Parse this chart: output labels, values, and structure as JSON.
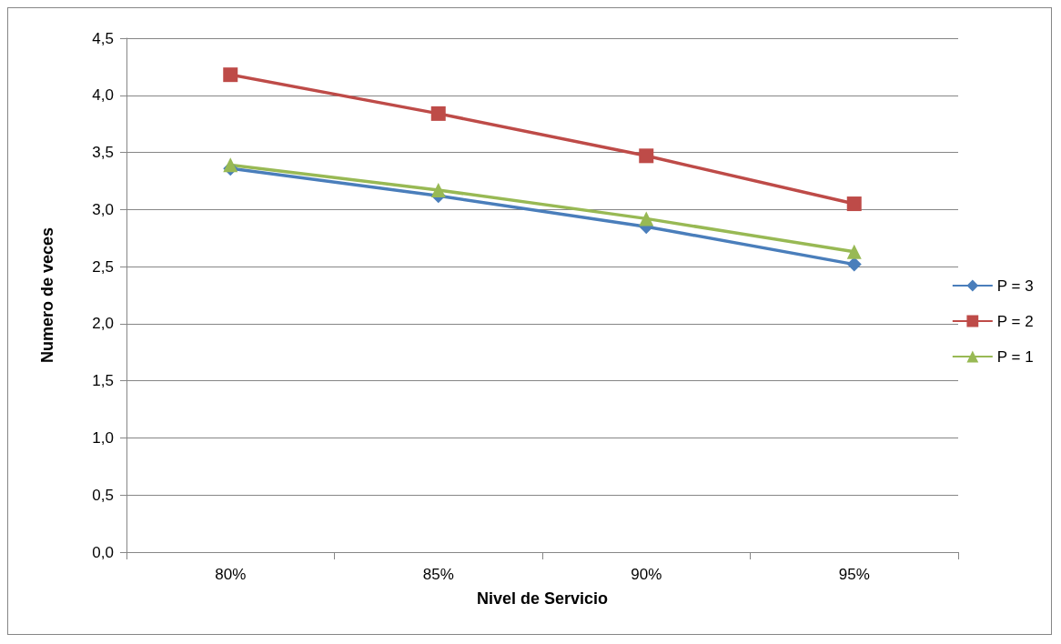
{
  "chart_data": {
    "type": "line",
    "xlabel": "Nivel de Servicio",
    "ylabel": "Numero de veces",
    "categories": [
      "80%",
      "85%",
      "90%",
      "95%"
    ],
    "series": [
      {
        "name": "P = 3",
        "color": "#4a7ebb",
        "marker": "diamond",
        "values": [
          3.36,
          3.12,
          2.85,
          2.52
        ]
      },
      {
        "name": "P = 2",
        "color": "#be4b48",
        "marker": "square",
        "values": [
          4.18,
          3.84,
          3.47,
          3.05
        ]
      },
      {
        "name": "P = 1",
        "color": "#98b954",
        "marker": "triangle",
        "values": [
          3.39,
          3.17,
          2.92,
          2.63
        ]
      }
    ],
    "ylim": [
      0,
      4.5
    ],
    "yticks": [
      {
        "value": 0,
        "label": "0,0"
      },
      {
        "value": 0.5,
        "label": "0,5"
      },
      {
        "value": 1,
        "label": "1,0"
      },
      {
        "value": 1.5,
        "label": "1,5"
      },
      {
        "value": 2,
        "label": "2,0"
      },
      {
        "value": 2.5,
        "label": "2,5"
      },
      {
        "value": 3,
        "label": "3,0"
      },
      {
        "value": 3.5,
        "label": "3,5"
      },
      {
        "value": 4,
        "label": "4,0"
      },
      {
        "value": 4.5,
        "label": "4,5"
      }
    ],
    "grid": "y",
    "legend": "right",
    "line_style": "solid"
  }
}
